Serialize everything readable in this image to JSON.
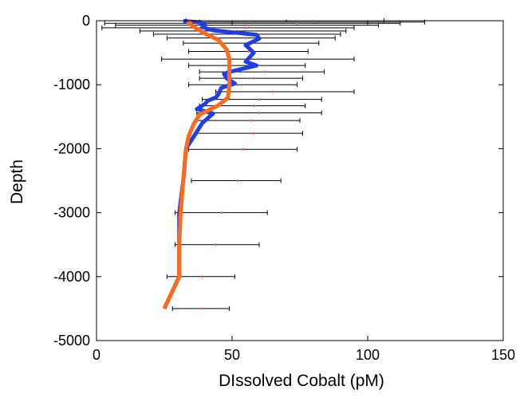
{
  "chart_data": {
    "type": "line",
    "title": "",
    "xlabel": "DIssolved Cobalt (pM)",
    "ylabel": "Depth",
    "xlim": [
      0,
      150
    ],
    "ylim": [
      -5000,
      0
    ],
    "xticks": [
      0,
      50,
      100,
      150
    ],
    "yticks": [
      0,
      -1000,
      -2000,
      -3000,
      -4000,
      -5000
    ],
    "grid": false,
    "legend": "none",
    "series": [
      {
        "color": "#1f3fe6",
        "points": [
          {
            "x": 32,
            "y": -5
          },
          {
            "x": 38,
            "y": -25
          },
          {
            "x": 40,
            "y": -60
          },
          {
            "x": 39,
            "y": -100
          },
          {
            "x": 43,
            "y": -150
          },
          {
            "x": 52,
            "y": -190
          },
          {
            "x": 59,
            "y": -220
          },
          {
            "x": 60,
            "y": -280
          },
          {
            "x": 55,
            "y": -380
          },
          {
            "x": 58,
            "y": -500
          },
          {
            "x": 55,
            "y": -640
          },
          {
            "x": 59,
            "y": -700
          },
          {
            "x": 49,
            "y": -800
          },
          {
            "x": 47,
            "y": -830
          },
          {
            "x": 48,
            "y": -900
          },
          {
            "x": 51,
            "y": -980
          },
          {
            "x": 46,
            "y": -1050
          },
          {
            "x": 45,
            "y": -1150
          },
          {
            "x": 44,
            "y": -1200
          },
          {
            "x": 41,
            "y": -1250
          },
          {
            "x": 40,
            "y": -1300
          },
          {
            "x": 37,
            "y": -1380
          },
          {
            "x": 43,
            "y": -1450
          },
          {
            "x": 39,
            "y": -1600
          },
          {
            "x": 36,
            "y": -1800
          },
          {
            "x": 33,
            "y": -2000
          },
          {
            "x": 32,
            "y": -2500
          },
          {
            "x": 30.5,
            "y": -3000
          },
          {
            "x": 30.5,
            "y": -3500
          },
          {
            "x": 30.5,
            "y": -4000
          },
          {
            "x": 25,
            "y": -4500
          }
        ]
      },
      {
        "color": "#ff6a1a",
        "points": [
          {
            "x": 35,
            "y": 0
          },
          {
            "x": 34,
            "y": -30
          },
          {
            "x": 36,
            "y": -100
          },
          {
            "x": 40,
            "y": -200
          },
          {
            "x": 45,
            "y": -300
          },
          {
            "x": 48,
            "y": -450
          },
          {
            "x": 49,
            "y": -600
          },
          {
            "x": 49,
            "y": -800
          },
          {
            "x": 49,
            "y": -1000
          },
          {
            "x": 48.5,
            "y": -1200
          },
          {
            "x": 45,
            "y": -1320
          },
          {
            "x": 38,
            "y": -1470
          },
          {
            "x": 36,
            "y": -1600
          },
          {
            "x": 34,
            "y": -1800
          },
          {
            "x": 33,
            "y": -2000
          },
          {
            "x": 32,
            "y": -2500
          },
          {
            "x": 31,
            "y": -3000
          },
          {
            "x": 30.5,
            "y": -3500
          },
          {
            "x": 30.5,
            "y": -4000
          },
          {
            "x": 25,
            "y": -4500
          }
        ]
      }
    ],
    "errorbars": {
      "color": "#000000",
      "marker_color": "#e05a5a",
      "points": [
        {
          "y": 0,
          "x": 70,
          "xmin": 33,
          "xmax": 106
        },
        {
          "y": -20,
          "x": 80,
          "xmin": 38,
          "xmax": 121
        },
        {
          "y": -40,
          "x": 74,
          "xmin": 3,
          "xmax": 112
        },
        {
          "y": -70,
          "x": 56,
          "xmin": 7,
          "xmax": 104
        },
        {
          "y": -110,
          "x": 55,
          "xmin": 2,
          "xmax": 95
        },
        {
          "y": -160,
          "x": 52,
          "xmin": 16,
          "xmax": 92
        },
        {
          "y": -210,
          "x": 55,
          "xmin": 21,
          "xmax": 90
        },
        {
          "y": -270,
          "x": 55,
          "xmin": 26,
          "xmax": 88
        },
        {
          "y": -350,
          "x": 57,
          "xmin": 32,
          "xmax": 82
        },
        {
          "y": -480,
          "x": 56,
          "xmin": 34,
          "xmax": 78
        },
        {
          "y": -600,
          "x": 60,
          "xmin": 24,
          "xmax": 95
        },
        {
          "y": -700,
          "x": 56,
          "xmin": 34,
          "xmax": 77
        },
        {
          "y": -800,
          "x": 62,
          "xmin": 38,
          "xmax": 84
        },
        {
          "y": -900,
          "x": 58,
          "xmin": 38,
          "xmax": 76
        },
        {
          "y": -1000,
          "x": 52,
          "xmin": 34,
          "xmax": 74
        },
        {
          "y": -1110,
          "x": 65,
          "xmin": 44,
          "xmax": 95
        },
        {
          "y": -1230,
          "x": 60,
          "xmin": 39,
          "xmax": 83
        },
        {
          "y": -1330,
          "x": 58,
          "xmin": 38,
          "xmax": 77
        },
        {
          "y": -1440,
          "x": 60,
          "xmin": 37,
          "xmax": 83
        },
        {
          "y": -1560,
          "x": 57,
          "xmin": 37,
          "xmax": 75
        },
        {
          "y": -1760,
          "x": 58,
          "xmin": 37,
          "xmax": 76
        },
        {
          "y": -2010,
          "x": 54,
          "xmin": 34,
          "xmax": 74
        },
        {
          "y": -2500,
          "x": 52,
          "xmin": 35,
          "xmax": 68
        },
        {
          "y": -3000,
          "x": 46,
          "xmin": 29,
          "xmax": 63
        },
        {
          "y": -3500,
          "x": 44,
          "xmin": 29,
          "xmax": 60
        },
        {
          "y": -4000,
          "x": 39,
          "xmin": 26,
          "xmax": 51
        },
        {
          "y": -4500,
          "x": 39,
          "xmin": 28,
          "xmax": 49
        }
      ]
    }
  }
}
